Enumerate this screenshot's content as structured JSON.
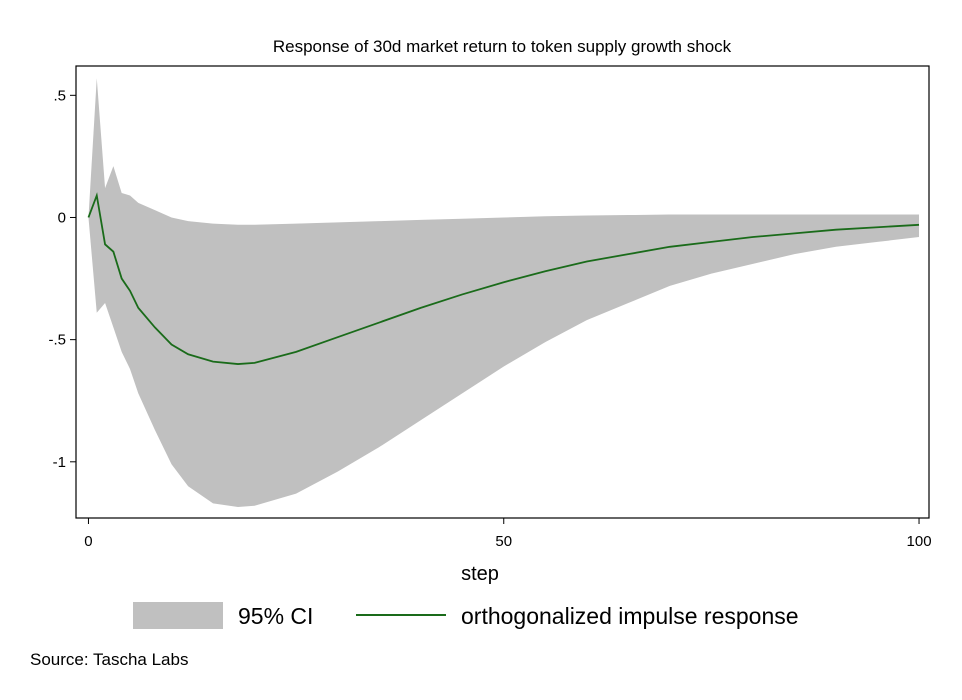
{
  "chart_data": {
    "type": "area",
    "title": "Response of 30d market return to token supply growth shock",
    "xlabel": "step",
    "ylabel": "",
    "xlim": [
      -1.5,
      101.2
    ],
    "ylim": [
      -1.23,
      0.62
    ],
    "x_ticks": [
      {
        "value": 0,
        "label": "0"
      },
      {
        "value": 50,
        "label": "50"
      },
      {
        "value": 100,
        "label": "100"
      }
    ],
    "y_ticks": [
      {
        "value": 0.5,
        "label": ".5"
      },
      {
        "value": 0,
        "label": "0"
      },
      {
        "value": -0.5,
        "label": "-.5"
      },
      {
        "value": -1,
        "label": "-1"
      }
    ],
    "grid": false,
    "legend_position": "bottom",
    "colors": {
      "ci_fill": "#c0c0c0",
      "irf_line": "#1a6b1a",
      "axis": "#000000"
    },
    "series": [
      {
        "name": "orthogonalized impulse response",
        "kind": "line",
        "x": [
          0,
          1,
          2,
          3,
          4,
          5,
          6,
          8,
          10,
          12,
          15,
          18,
          20,
          25,
          30,
          35,
          40,
          45,
          50,
          55,
          60,
          65,
          70,
          75,
          80,
          85,
          90,
          95,
          100
        ],
        "values": [
          0,
          0.09,
          -0.11,
          -0.14,
          -0.25,
          -0.3,
          -0.37,
          -0.45,
          -0.52,
          -0.56,
          -0.59,
          -0.6,
          -0.595,
          -0.55,
          -0.49,
          -0.43,
          -0.37,
          -0.315,
          -0.265,
          -0.22,
          -0.18,
          -0.15,
          -0.12,
          -0.1,
          -0.08,
          -0.065,
          -0.05,
          -0.04,
          -0.03
        ]
      },
      {
        "name": "95% CI",
        "kind": "band",
        "x": [
          0,
          1,
          2,
          3,
          4,
          5,
          6,
          8,
          10,
          12,
          15,
          18,
          20,
          25,
          30,
          35,
          40,
          45,
          50,
          55,
          60,
          65,
          70,
          75,
          80,
          85,
          90,
          95,
          100
        ],
        "upper": [
          0,
          0.57,
          0.12,
          0.21,
          0.1,
          0.09,
          0.06,
          0.03,
          0.0,
          -0.015,
          -0.025,
          -0.03,
          -0.03,
          -0.025,
          -0.02,
          -0.015,
          -0.01,
          -0.005,
          0.0,
          0.005,
          0.008,
          0.01,
          0.012,
          0.012,
          0.012,
          0.012,
          0.012,
          0.012,
          0.012
        ],
        "lower": [
          0,
          -0.39,
          -0.35,
          -0.45,
          -0.55,
          -0.62,
          -0.72,
          -0.87,
          -1.01,
          -1.1,
          -1.17,
          -1.185,
          -1.18,
          -1.13,
          -1.04,
          -0.94,
          -0.83,
          -0.72,
          -0.61,
          -0.51,
          -0.42,
          -0.35,
          -0.28,
          -0.23,
          -0.19,
          -0.15,
          -0.12,
          -0.1,
          -0.08
        ]
      }
    ]
  },
  "legend": {
    "items": [
      {
        "label": "95% CI"
      },
      {
        "label": "orthogonalized impulse response"
      }
    ]
  },
  "source_note": "Source: Tascha Labs"
}
